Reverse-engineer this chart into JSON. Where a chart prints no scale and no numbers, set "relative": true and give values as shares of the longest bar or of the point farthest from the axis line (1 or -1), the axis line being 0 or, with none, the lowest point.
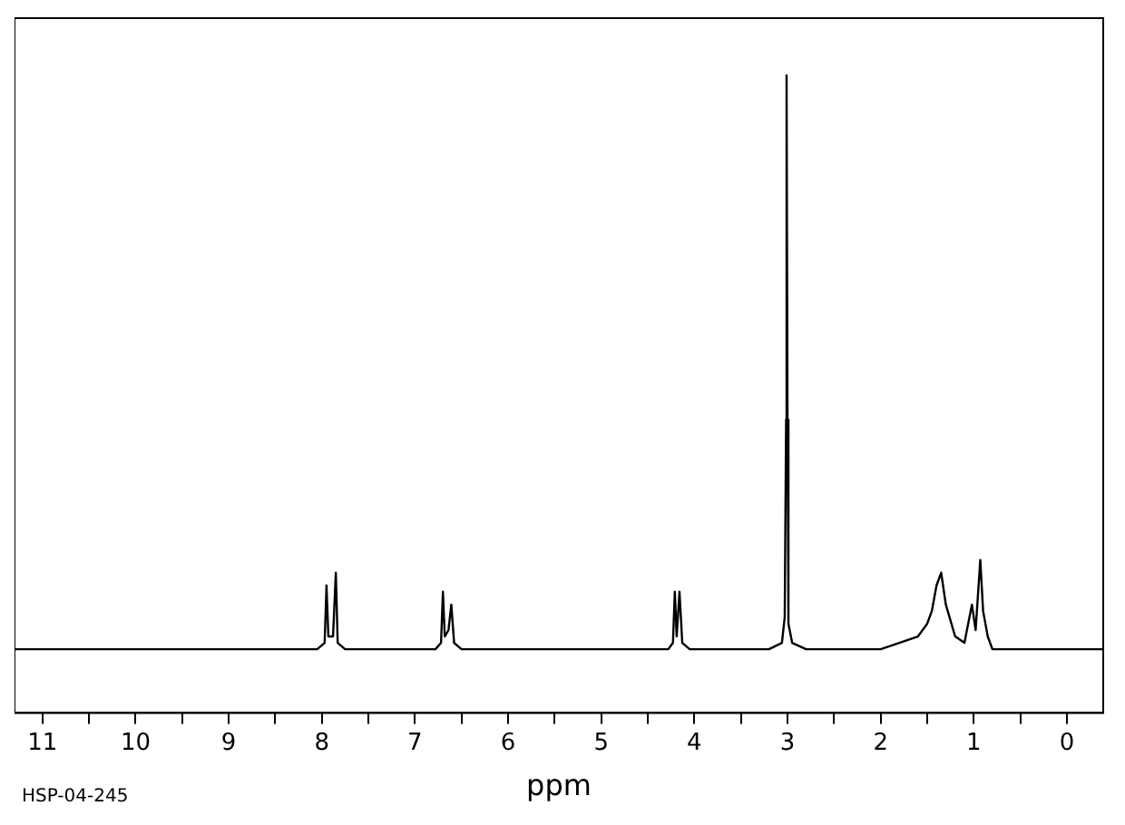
{
  "chart_data": {
    "type": "line",
    "relative": true,
    "xlabel": "ppm",
    "annotations": [
      "HSP-04-245"
    ],
    "xlim": [
      11.3,
      -0.39
    ],
    "xticks": [
      11,
      {
        "value": 10.5,
        "label": null
      },
      10,
      {
        "value": 9.5,
        "label": null
      },
      9,
      {
        "value": 8.5,
        "label": null
      },
      8,
      {
        "value": 7.5,
        "label": null
      },
      7,
      {
        "value": 6.5,
        "label": null
      },
      6,
      {
        "value": 5.5,
        "label": null
      },
      5,
      {
        "value": 4.5,
        "label": null
      },
      4,
      {
        "value": 3.5,
        "label": null
      },
      3,
      {
        "value": 2.5,
        "label": null
      },
      2,
      {
        "value": 1.5,
        "label": null
      },
      1,
      {
        "value": 0.5,
        "label": null
      },
      0
    ],
    "grid": false,
    "legend": false,
    "marker": "none",
    "line_style": "solid",
    "series": [
      {
        "color": "#000000",
        "x": [
          11.3,
          8.05,
          7.97,
          7.95,
          7.93,
          7.88,
          7.85,
          7.83,
          7.75,
          6.78,
          6.72,
          6.7,
          6.68,
          6.64,
          6.61,
          6.58,
          6.5,
          4.28,
          4.23,
          4.21,
          4.19,
          4.16,
          4.13,
          4.05,
          3.2,
          3.06,
          3.03,
          3.015,
          3.01,
          3.0,
          2.99,
          2.95,
          2.8,
          2.0,
          1.8,
          1.6,
          1.5,
          1.45,
          1.4,
          1.35,
          1.3,
          1.2,
          1.1,
          1.02,
          0.98,
          0.93,
          0.9,
          0.85,
          0.8,
          -0.39
        ],
        "values": [
          0.1,
          0.1,
          0.11,
          0.2,
          0.12,
          0.12,
          0.22,
          0.11,
          0.1,
          0.1,
          0.11,
          0.19,
          0.12,
          0.13,
          0.17,
          0.11,
          0.1,
          0.1,
          0.11,
          0.19,
          0.12,
          0.19,
          0.11,
          0.1,
          0.1,
          0.11,
          0.15,
          0.46,
          1,
          0.46,
          0.14,
          0.11,
          0.1,
          0.1,
          0.11,
          0.12,
          0.14,
          0.16,
          0.2,
          0.22,
          0.17,
          0.12,
          0.11,
          0.17,
          0.13,
          0.24,
          0.16,
          0.12,
          0.1,
          0.1
        ]
      }
    ]
  }
}
